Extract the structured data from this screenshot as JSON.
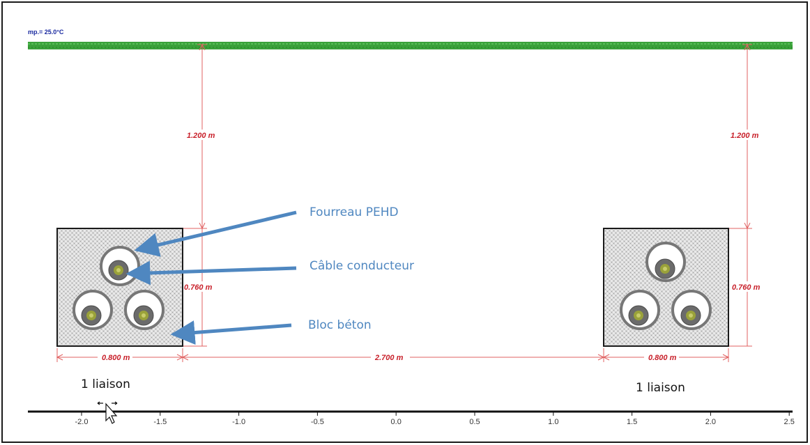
{
  "header": {
    "temperature_label": "mp.= 25.0°C"
  },
  "dimensions": {
    "depth_left": "1.200 m",
    "depth_right": "1.200 m",
    "block_height_left": "0.760 m",
    "block_height_right": "0.760 m",
    "block_width_left": "0.800 m",
    "block_width_right": "0.800 m",
    "spacing": "2.700 m"
  },
  "annotations": {
    "duct": "Fourreau PEHD",
    "conductor": "Câble conducteur",
    "block": "Bloc béton"
  },
  "labels": {
    "liaison_left": "1 liaison",
    "liaison_right": "1 liaison"
  },
  "axis": {
    "ticks": [
      "-2.0",
      "-1.5",
      "-1.0",
      "-0.5",
      "0.0",
      "0.5",
      "1.0",
      "1.5",
      "2.0",
      "2.5"
    ]
  },
  "colors": {
    "ground": "#3aa13a",
    "dimension": "#c8202a",
    "annotation": "#4f87c0",
    "block_fill": "#d9d9d9"
  },
  "icons": {
    "cursor": "mouse-pointer-icon"
  }
}
